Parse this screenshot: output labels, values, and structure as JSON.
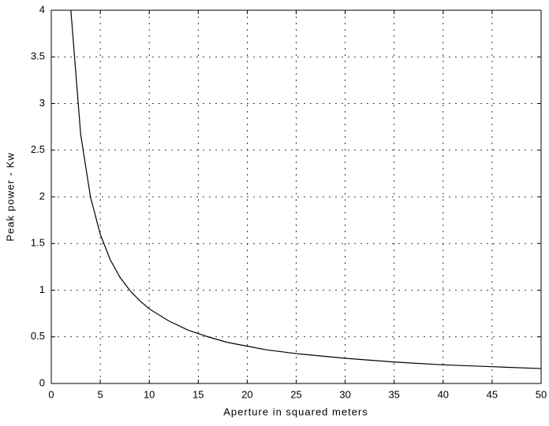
{
  "chart_data": {
    "type": "line",
    "xlabel": "Aperture in squared meters",
    "ylabel": "Peak power - Kw",
    "x": [
      2,
      3,
      4,
      5,
      6,
      7,
      8,
      9,
      10,
      12,
      14,
      16,
      18,
      20,
      22,
      25,
      28,
      30,
      35,
      40,
      45,
      50
    ],
    "series": [
      {
        "color": "#000000",
        "values": [
          4,
          2.67,
          2,
          1.6,
          1.33,
          1.14,
          1,
          0.89,
          0.8,
          0.67,
          0.57,
          0.5,
          0.44,
          0.4,
          0.36,
          0.32,
          0.29,
          0.27,
          0.23,
          0.2,
          0.18,
          0.16
        ]
      }
    ],
    "xlim": [
      0,
      50
    ],
    "xticks": [
      0,
      5,
      10,
      15,
      20,
      25,
      30,
      35,
      40,
      45,
      50
    ],
    "ylim": [
      0,
      4
    ],
    "yticks": [
      0,
      0.5,
      1,
      1.5,
      2,
      2.5,
      3,
      3.5,
      4
    ],
    "grid": true
  }
}
